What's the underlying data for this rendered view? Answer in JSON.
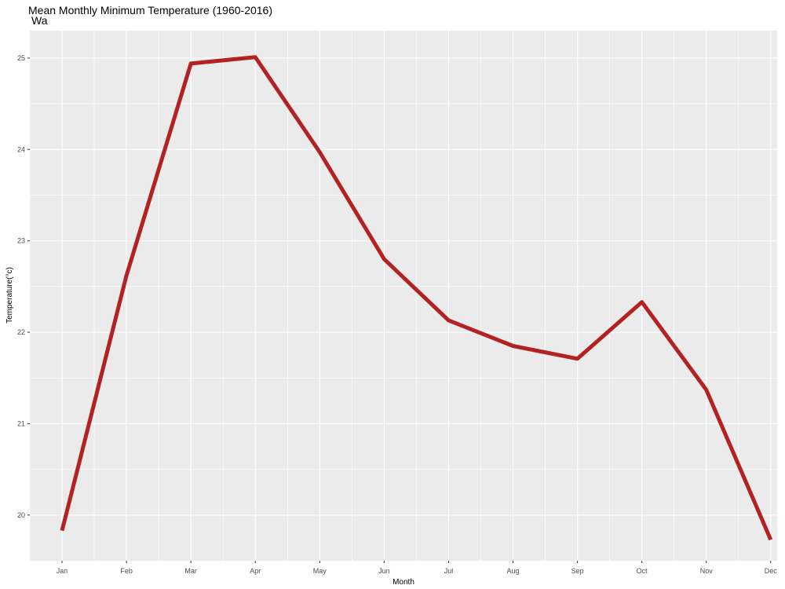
{
  "chart_data": {
    "type": "line",
    "title": "Mean Monthly Minimum Temperature (1960-2016)",
    "subtitle": "Wa",
    "xlabel": "Month",
    "ylabel": "Temperature(°c)",
    "categories": [
      "Jan",
      "Feb",
      "Mar",
      "Apr",
      "May",
      "Jun",
      "Jul",
      "Aug",
      "Sep",
      "Oct",
      "Nov",
      "Dec"
    ],
    "values": [
      19.83,
      22.62,
      24.94,
      25.01,
      23.97,
      22.8,
      22.13,
      21.85,
      21.71,
      22.33,
      21.37,
      19.73
    ],
    "ylim": [
      19.5,
      25.3
    ],
    "yticks": [
      "20",
      "21",
      "22",
      "23",
      "24",
      "25"
    ],
    "grid": true,
    "colors": {
      "line": "#b22222",
      "panel": "#ebebeb",
      "grid": "#ffffff"
    }
  }
}
